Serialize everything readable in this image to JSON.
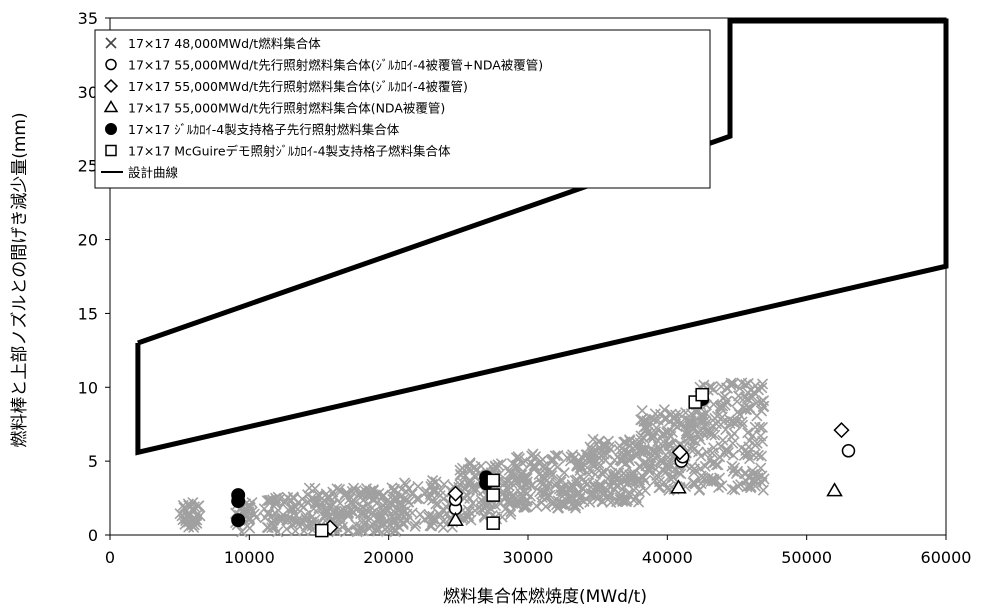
{
  "chart_data": {
    "type": "scatter",
    "xlabel": "燃料集合体燃焼度(MWd/t)",
    "ylabel": "燃料棒と上部ノズルとの間げき減少量(mm)",
    "xlim": [
      0,
      60000
    ],
    "ylim": [
      0,
      35
    ],
    "x_ticks": [
      0,
      10000,
      20000,
      30000,
      40000,
      50000,
      60000
    ],
    "y_ticks": [
      0,
      5,
      10,
      15,
      20,
      25,
      30,
      35
    ],
    "x_tick_labels": [
      "0",
      "10000",
      "20000",
      "30000",
      "40000",
      "50000",
      "60000"
    ],
    "y_tick_labels": [
      "0",
      "5",
      "10",
      "15",
      "20",
      "25",
      "30",
      "35"
    ],
    "grid": false,
    "legend_position": "top-left",
    "series": [
      {
        "name": "17×17  48,000MWd/t燃料集合体",
        "marker": "x",
        "color": "#a0a0a0",
        "clusters": [
          {
            "x": [
              5000,
              6500
            ],
            "y": [
              0.5,
              2.2
            ],
            "n": 40
          },
          {
            "x": [
              9000,
              10500
            ],
            "y": [
              0.2,
              2.2
            ],
            "n": 30
          },
          {
            "x": [
              11000,
              14000
            ],
            "y": [
              0.2,
              2.6
            ],
            "n": 60
          },
          {
            "x": [
              14000,
              21000
            ],
            "y": [
              0.2,
              3.2
            ],
            "n": 200
          },
          {
            "x": [
              21000,
              25000
            ],
            "y": [
              0.5,
              3.8
            ],
            "n": 70
          },
          {
            "x": [
              25000,
              29000
            ],
            "y": [
              1.0,
              5.0
            ],
            "n": 120
          },
          {
            "x": [
              29000,
              34000
            ],
            "y": [
              1.8,
              5.5
            ],
            "n": 160
          },
          {
            "x": [
              34000,
              38000
            ],
            "y": [
              2.2,
              6.5
            ],
            "n": 150
          },
          {
            "x": [
              38000,
              42000
            ],
            "y": [
              3.0,
              8.5
            ],
            "n": 160
          },
          {
            "x": [
              42000,
              47000
            ],
            "y": [
              3.0,
              10.3
            ],
            "n": 190
          }
        ]
      },
      {
        "name": "17×17  55,000MWd/t先行照射燃料集合体(ｼﾞﾙｶﾛｲ-4被覆管+NDA被覆管)",
        "marker": "circle-open",
        "color": "#000000",
        "points": [
          [
            24800,
            1.8
          ],
          [
            24800,
            2.4
          ],
          [
            41000,
            5.0
          ],
          [
            41100,
            5.3
          ],
          [
            53000,
            5.7
          ]
        ]
      },
      {
        "name": "17×17  55,000MWd/t先行照射燃料集合体(ｼﾞﾙｶﾛｲ-4被覆管)",
        "marker": "diamond-open",
        "color": "#000000",
        "points": [
          [
            24800,
            2.8
          ],
          [
            15800,
            0.5
          ],
          [
            40900,
            5.6
          ],
          [
            52500,
            7.1
          ]
        ]
      },
      {
        "name": "17×17  55,000MWd/t先行照射燃料集合体(NDA被覆管)",
        "marker": "triangle-open",
        "color": "#000000",
        "points": [
          [
            24800,
            1.0
          ],
          [
            40800,
            3.2
          ],
          [
            52000,
            3.0
          ]
        ]
      },
      {
        "name": "17×17  ｼﾞﾙｶﾛｲ-4製支持格子先行照射燃料集合体",
        "marker": "circle-filled",
        "color": "#000000",
        "points": [
          [
            9200,
            1.0
          ],
          [
            9200,
            2.3
          ],
          [
            9200,
            2.7
          ],
          [
            27000,
            3.5
          ],
          [
            27000,
            3.9
          ],
          [
            42500,
            9.2
          ]
        ]
      },
      {
        "name": "17×17  McGuireデモ照射ｼﾞﾙｶﾛｲ-4製支持格子燃料集合体",
        "marker": "square-open",
        "color": "#000000",
        "points": [
          [
            15200,
            0.3
          ],
          [
            27500,
            0.8
          ],
          [
            27500,
            2.7
          ],
          [
            27500,
            3.7
          ],
          [
            42000,
            9.0
          ],
          [
            42500,
            9.5
          ]
        ]
      },
      {
        "name": "設計曲線",
        "marker": "line",
        "color": "#000000",
        "points": [
          [
            2000,
            13.0
          ],
          [
            44500,
            27.0
          ],
          [
            44500,
            34.8
          ],
          [
            60000,
            34.8
          ],
          [
            60000,
            18.2
          ],
          [
            2000,
            5.6
          ],
          [
            2000,
            13.0
          ]
        ]
      }
    ]
  }
}
